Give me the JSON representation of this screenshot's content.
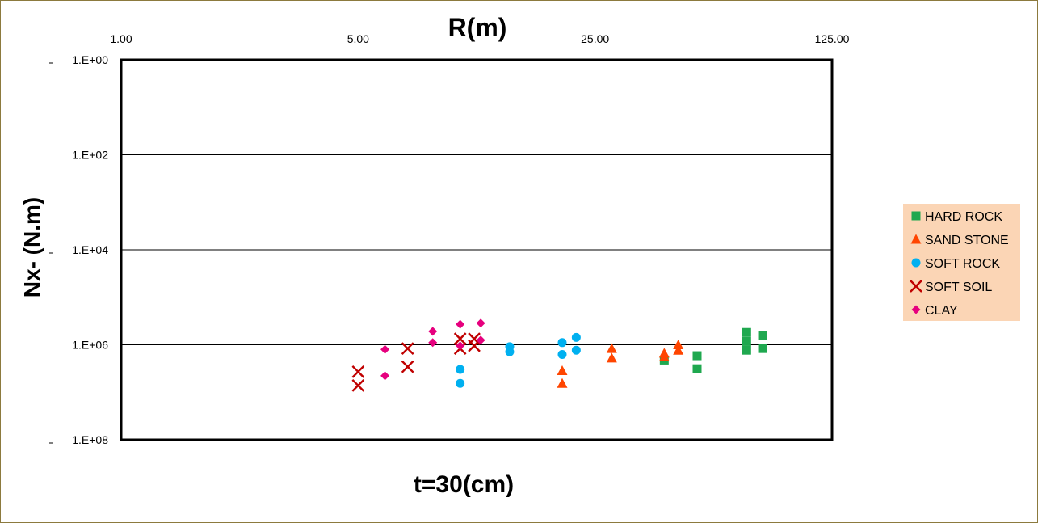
{
  "chart_data": {
    "type": "scatter",
    "title": "R(m)",
    "xlabel": "R(m)",
    "ylabel": "Nx- (N.m)",
    "bottom_label": "t=30(cm)",
    "x_scale": "log",
    "x_ticks": [
      "1.00",
      "5.00",
      "25.00",
      "125.00"
    ],
    "x_tick_values": [
      1,
      5,
      25,
      125
    ],
    "xlim": [
      1,
      125
    ],
    "y_scale": "log",
    "y_reversed": true,
    "y_ticks": [
      "1.E+00",
      "1.E+02",
      "1.E+04",
      "1.E+06",
      "1.E+08"
    ],
    "y_tick_values": [
      1,
      100,
      10000,
      1000000,
      100000000
    ],
    "ylim": [
      1,
      100000000
    ],
    "grid": "horizontal",
    "legend_position": "right",
    "plot_background": "#ffffff",
    "legend_background": "#fbd5b5",
    "series": [
      {
        "name": "HARD ROCK",
        "marker": "square",
        "color": "#1fa84f",
        "points": [
          [
            40,
            2100000
          ],
          [
            50,
            3200000
          ],
          [
            50,
            1700000
          ],
          [
            70,
            1300000
          ],
          [
            70,
            850000
          ],
          [
            70,
            550000
          ],
          [
            78,
            1200000
          ],
          [
            78,
            650000
          ]
        ]
      },
      {
        "name": "SAND STONE",
        "marker": "triangle",
        "color": "#ff4500",
        "points": [
          [
            20,
            3500000
          ],
          [
            20,
            6500000
          ],
          [
            28,
            1900000
          ],
          [
            28,
            1200000
          ],
          [
            40,
            1800000
          ],
          [
            40,
            1500000
          ],
          [
            44,
            1300000
          ],
          [
            44,
            1000000
          ]
        ]
      },
      {
        "name": "SOFT ROCK",
        "marker": "circle",
        "color": "#00b0f0",
        "points": [
          [
            10,
            3300000
          ],
          [
            10,
            6500000
          ],
          [
            14,
            1400000
          ],
          [
            14,
            1100000
          ],
          [
            20,
            900000
          ],
          [
            20,
            1600000
          ],
          [
            22,
            1300000
          ],
          [
            22,
            700000
          ]
        ]
      },
      {
        "name": "SOFT SOIL",
        "marker": "x",
        "color": "#c00000",
        "points": [
          [
            5,
            7200000
          ],
          [
            5,
            3700000
          ],
          [
            7,
            2900000
          ],
          [
            7,
            1200000
          ],
          [
            10,
            750000
          ],
          [
            10,
            1200000
          ],
          [
            11,
            750000
          ],
          [
            11,
            1050000
          ]
        ]
      },
      {
        "name": "CLAY",
        "marker": "diamond",
        "color": "#e6007e",
        "points": [
          [
            6,
            4500000
          ],
          [
            6,
            1250000
          ],
          [
            8.3,
            900000
          ],
          [
            8.3,
            520000
          ],
          [
            10,
            370000
          ],
          [
            10,
            1050000
          ],
          [
            11.5,
            350000
          ],
          [
            11.5,
            800000
          ]
        ]
      }
    ]
  }
}
